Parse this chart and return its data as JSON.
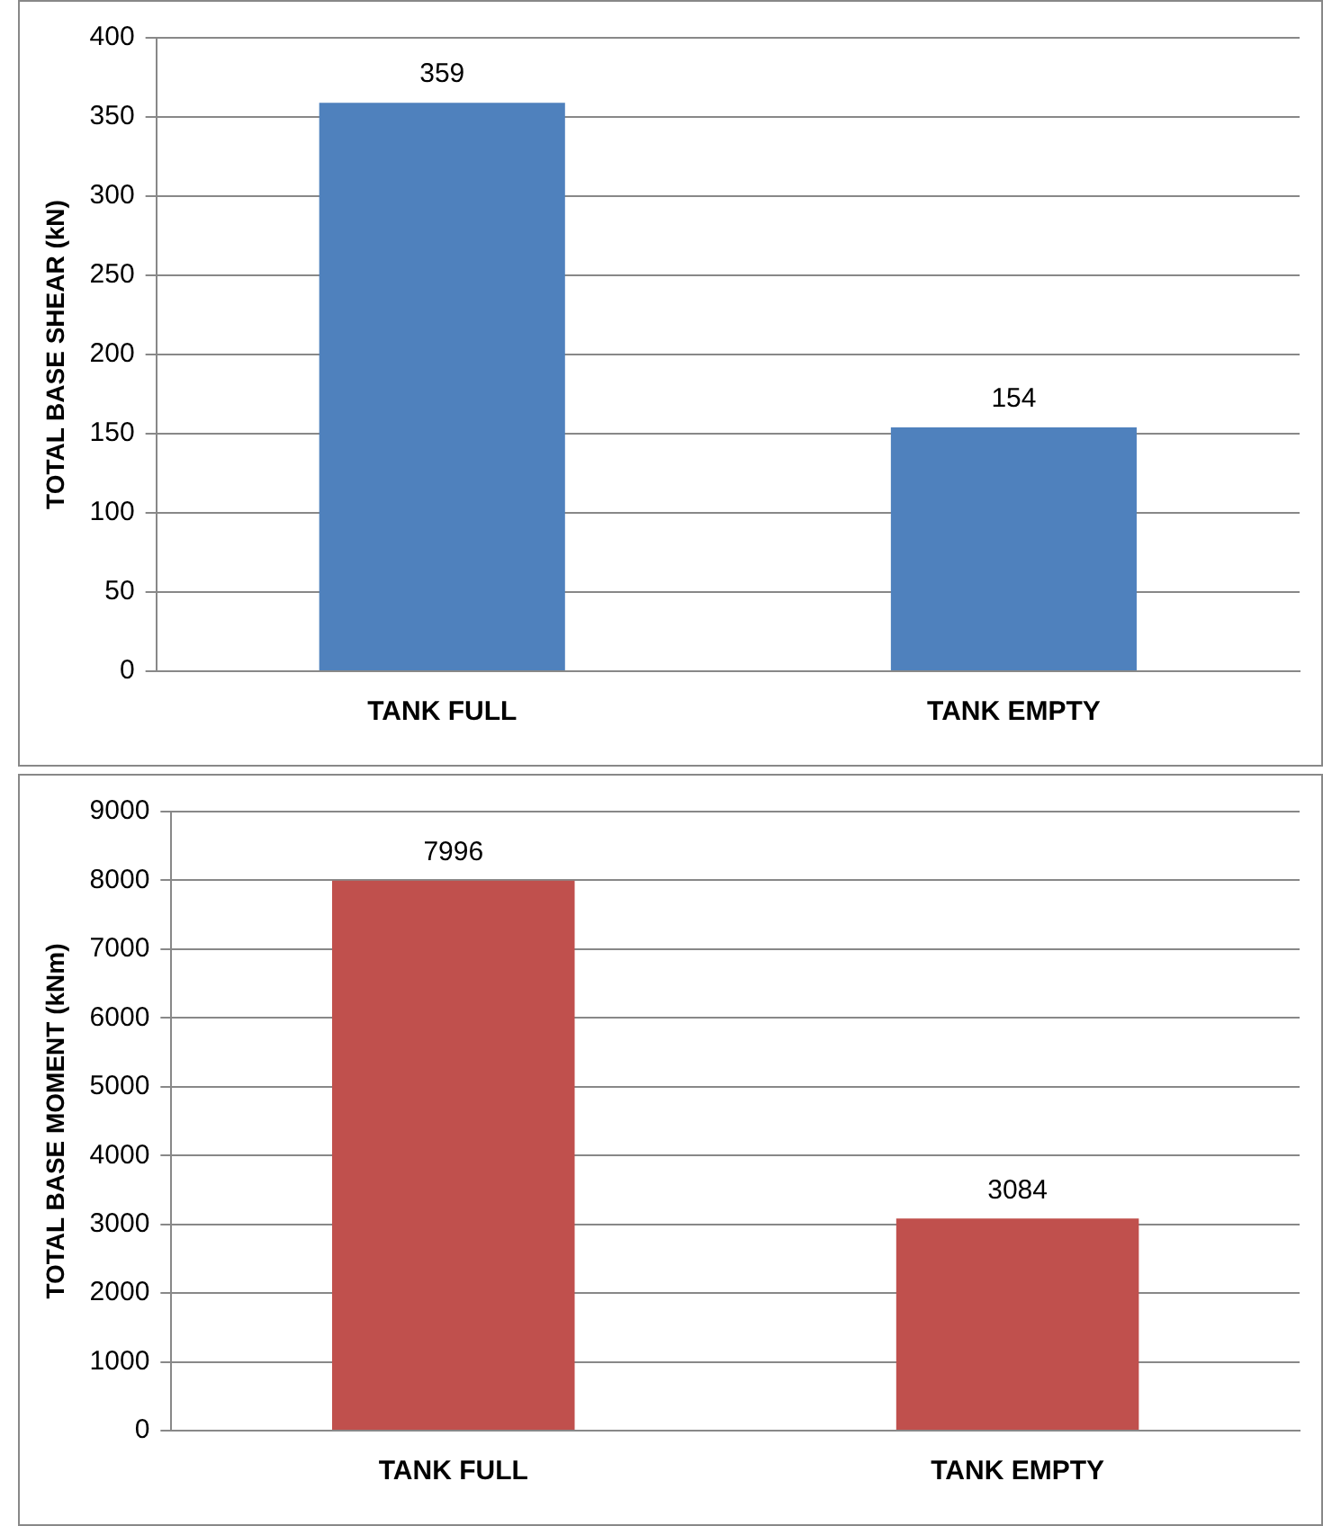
{
  "chart_data": [
    {
      "type": "bar",
      "categories": [
        "TANK FULL",
        "TANK EMPTY"
      ],
      "values": [
        359,
        154
      ],
      "color": "#4f81bd",
      "ylabel": "TOTAL BASE SHEAR (kN)",
      "ylim": [
        0,
        400
      ],
      "yticks": [
        0,
        50,
        100,
        150,
        200,
        250,
        300,
        350,
        400
      ],
      "grid": "y",
      "data_labels": true
    },
    {
      "type": "bar",
      "categories": [
        "TANK FULL",
        "TANK EMPTY"
      ],
      "values": [
        7996,
        3084
      ],
      "color": "#c0504d",
      "ylabel": "TOTAL BASE MOMENT (kNm)",
      "ylim": [
        0,
        9000
      ],
      "yticks": [
        0,
        1000,
        2000,
        3000,
        4000,
        5000,
        6000,
        7000,
        8000,
        9000
      ],
      "grid": "y",
      "data_labels": true
    }
  ]
}
